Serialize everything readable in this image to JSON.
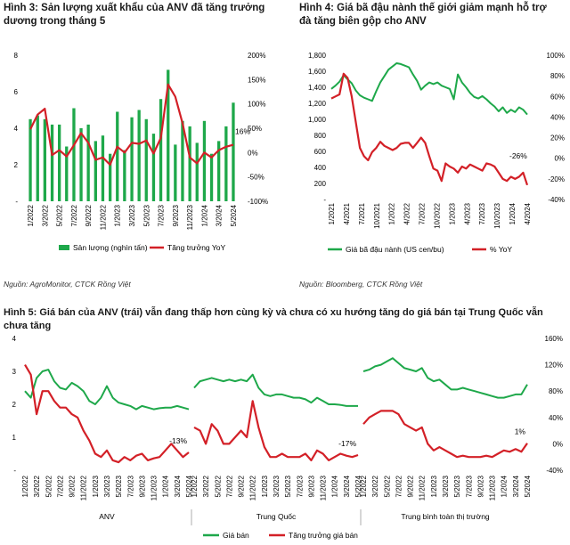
{
  "fig3": {
    "title": "Hình 3: Sản lượng xuất khẩu của ANV đã tăng trưởng dương trong tháng 5",
    "source": "Nguồn: AgroMonitor, CTCK Rồng Việt",
    "chart_data": {
      "type": "bar",
      "categories": [
        "1/2022",
        "2/2022",
        "3/2022",
        "4/2022",
        "5/2022",
        "6/2022",
        "7/2022",
        "8/2022",
        "9/2022",
        "10/2022",
        "11/2022",
        "12/2022",
        "1/2023",
        "2/2023",
        "3/2023",
        "4/2023",
        "5/2023",
        "6/2023",
        "7/2023",
        "8/2023",
        "9/2023",
        "10/2023",
        "11/2023",
        "12/2023",
        "1/2024",
        "2/2024",
        "3/2024",
        "4/2024",
        "5/2024"
      ],
      "x_tick_labels": [
        "1/2022",
        "3/2022",
        "5/2022",
        "7/2022",
        "9/2022",
        "11/2022",
        "1/2023",
        "3/2023",
        "5/2023",
        "7/2023",
        "9/2023",
        "11/2023",
        "1/2024",
        "3/2024",
        "5/2024"
      ],
      "left_ticks": [
        "-",
        "2",
        "4",
        "6",
        "8"
      ],
      "ylim_left": [
        0,
        8
      ],
      "right_ticks": [
        "-100%",
        "-50%",
        "0%",
        "50%",
        "100%",
        "150%",
        "200%"
      ],
      "ylim_right": [
        -100,
        200
      ],
      "annotation": "16%",
      "series": [
        {
          "name": "Sản lượng (nghìn tấn)",
          "type": "bar",
          "axis": "left",
          "color": "#1ea84a",
          "values": [
            4.5,
            4.7,
            4.5,
            4.2,
            4.2,
            3.0,
            5.1,
            4.0,
            4.2,
            3.3,
            3.6,
            2.6,
            4.9,
            2.8,
            4.6,
            5.0,
            4.5,
            3.7,
            5.6,
            7.2,
            3.1,
            4.4,
            4.1,
            3.2,
            4.4,
            2.6,
            3.3,
            4.1,
            5.4
          ]
        },
        {
          "name": "Tăng trưởng YoY",
          "type": "line",
          "axis": "right",
          "color": "#d32027",
          "values": [
            48,
            78,
            90,
            -5,
            5,
            -8,
            15,
            40,
            20,
            -15,
            -10,
            -25,
            12,
            0,
            20,
            18,
            25,
            -2,
            30,
            140,
            115,
            60,
            -10,
            -22,
            0,
            -10,
            5,
            12,
            16
          ]
        }
      ]
    }
  },
  "fig4": {
    "title": "Hình 4: Giá bã đậu nành thế giới giảm mạnh hỗ trợ đà tăng biên gộp cho ANV",
    "source": "Nguồn: Bloomberg, CTCK Rồng Việt",
    "chart_data": {
      "type": "line",
      "x_tick_labels": [
        "1/2021",
        "4/2021",
        "7/2021",
        "10/2021",
        "1/2022",
        "4/2022",
        "7/2022",
        "10/2022",
        "1/2023",
        "4/2023",
        "7/2023",
        "10/2023",
        "1/2024",
        "4/2024"
      ],
      "left_ticks": [
        "-",
        "200",
        "400",
        "600",
        "800",
        "1,000",
        "1,200",
        "1,400",
        "1,600",
        "1,800"
      ],
      "ylim_left": [
        0,
        1800
      ],
      "right_ticks": [
        "-40%",
        "-20%",
        "0%",
        "20%",
        "40%",
        "60%",
        "80%",
        "100%"
      ],
      "ylim_right": [
        -40,
        100
      ],
      "annotation": "-26%",
      "series": [
        {
          "name": "Giá bã đậu nành (US cen/bu)",
          "axis": "left",
          "color": "#1ea84a",
          "values": [
            1380,
            1420,
            1470,
            1550,
            1500,
            1450,
            1360,
            1300,
            1270,
            1250,
            1230,
            1350,
            1460,
            1540,
            1620,
            1660,
            1700,
            1690,
            1670,
            1650,
            1560,
            1480,
            1370,
            1420,
            1460,
            1440,
            1460,
            1420,
            1400,
            1380,
            1250,
            1560,
            1460,
            1400,
            1330,
            1280,
            1260,
            1290,
            1250,
            1200,
            1160,
            1100,
            1150,
            1080,
            1120,
            1090,
            1150,
            1120,
            1060
          ]
        },
        {
          "name": "% YoY",
          "axis": "right",
          "color": "#d32027",
          "values": [
            58,
            60,
            62,
            82,
            78,
            60,
            35,
            10,
            2,
            -2,
            6,
            10,
            16,
            12,
            10,
            8,
            10,
            14,
            15,
            15,
            10,
            15,
            20,
            15,
            2,
            -10,
            -12,
            -22,
            -5,
            -8,
            -10,
            -14,
            -8,
            -10,
            -6,
            -8,
            -10,
            -12,
            -5,
            -6,
            -8,
            -14,
            -20,
            -22,
            -18,
            -20,
            -18,
            -14,
            -26
          ]
        }
      ]
    }
  },
  "fig5": {
    "title": "Hình 5: Giá bán của ANV (trái) vẫn đang thấp hơn cùng kỳ và chưa có xu hướng tăng do giá bán tại Trung Quốc vẫn chưa tăng",
    "chart_data": {
      "type": "line",
      "x_tick_labels": [
        "1/2022",
        "3/2022",
        "5/2022",
        "7/2022",
        "9/2022",
        "11/2022",
        "1/2023",
        "3/2023",
        "5/2023",
        "7/2023",
        "9/2023",
        "11/2023",
        "1/2024",
        "3/2024",
        "5/2024"
      ],
      "left_ticks": [
        "-",
        "1",
        "2",
        "3",
        "4"
      ],
      "ylim_left": [
        0,
        4
      ],
      "right_ticks": [
        "-40%",
        "0%",
        "40%",
        "80%",
        "120%",
        "160%"
      ],
      "ylim_right": [
        -40,
        160
      ],
      "panels": [
        {
          "label": "ANV",
          "annotation": "-13%",
          "price": [
            2.4,
            2.2,
            2.8,
            3.0,
            3.05,
            2.7,
            2.5,
            2.45,
            2.65,
            2.55,
            2.4,
            2.1,
            2.0,
            2.2,
            2.55,
            2.2,
            2.05,
            2.0,
            1.95,
            1.85,
            1.95,
            1.9,
            1.85,
            1.88,
            1.9,
            1.9,
            1.95,
            1.9,
            1.85
          ],
          "growth": [
            120,
            105,
            45,
            80,
            80,
            65,
            55,
            55,
            45,
            40,
            20,
            5,
            -15,
            -20,
            -10,
            -25,
            -28,
            -20,
            -25,
            -18,
            -15,
            -25,
            -22,
            -20,
            -10,
            0,
            -10,
            -20,
            -13
          ]
        },
        {
          "label": "Trung Quốc",
          "annotation": "-17%",
          "price": [
            2.5,
            2.7,
            2.75,
            2.8,
            2.75,
            2.7,
            2.75,
            2.7,
            2.75,
            2.7,
            2.9,
            2.5,
            2.3,
            2.25,
            2.3,
            2.3,
            2.25,
            2.2,
            2.2,
            2.15,
            2.05,
            2.2,
            2.1,
            2.0,
            2.0,
            1.98,
            1.95,
            1.95,
            1.95
          ],
          "growth": [
            25,
            20,
            0,
            30,
            20,
            0,
            0,
            10,
            20,
            10,
            65,
            25,
            -5,
            -20,
            -20,
            -15,
            -20,
            -20,
            -20,
            -15,
            -25,
            -10,
            -15,
            -25,
            -20,
            -15,
            -18,
            -20,
            -17
          ]
        },
        {
          "label": "Trung bình toàn thị trường",
          "annotation": "1%",
          "price": [
            3.0,
            3.05,
            3.15,
            3.2,
            3.3,
            3.4,
            3.25,
            3.1,
            3.05,
            3.0,
            3.1,
            2.8,
            2.7,
            2.75,
            2.6,
            2.45,
            2.45,
            2.5,
            2.45,
            2.4,
            2.35,
            2.3,
            2.25,
            2.2,
            2.2,
            2.25,
            2.3,
            2.3,
            2.6
          ],
          "growth": [
            30,
            40,
            45,
            50,
            50,
            50,
            45,
            30,
            25,
            20,
            25,
            0,
            -10,
            -5,
            -10,
            -15,
            -20,
            -18,
            -20,
            -20,
            -20,
            -18,
            -20,
            -15,
            -10,
            -12,
            -8,
            -12,
            1
          ]
        }
      ],
      "legend": [
        {
          "name": "Giá bán",
          "color": "#1ea84a"
        },
        {
          "name": "Tăng trưởng giá bán",
          "color": "#d32027"
        }
      ]
    }
  }
}
